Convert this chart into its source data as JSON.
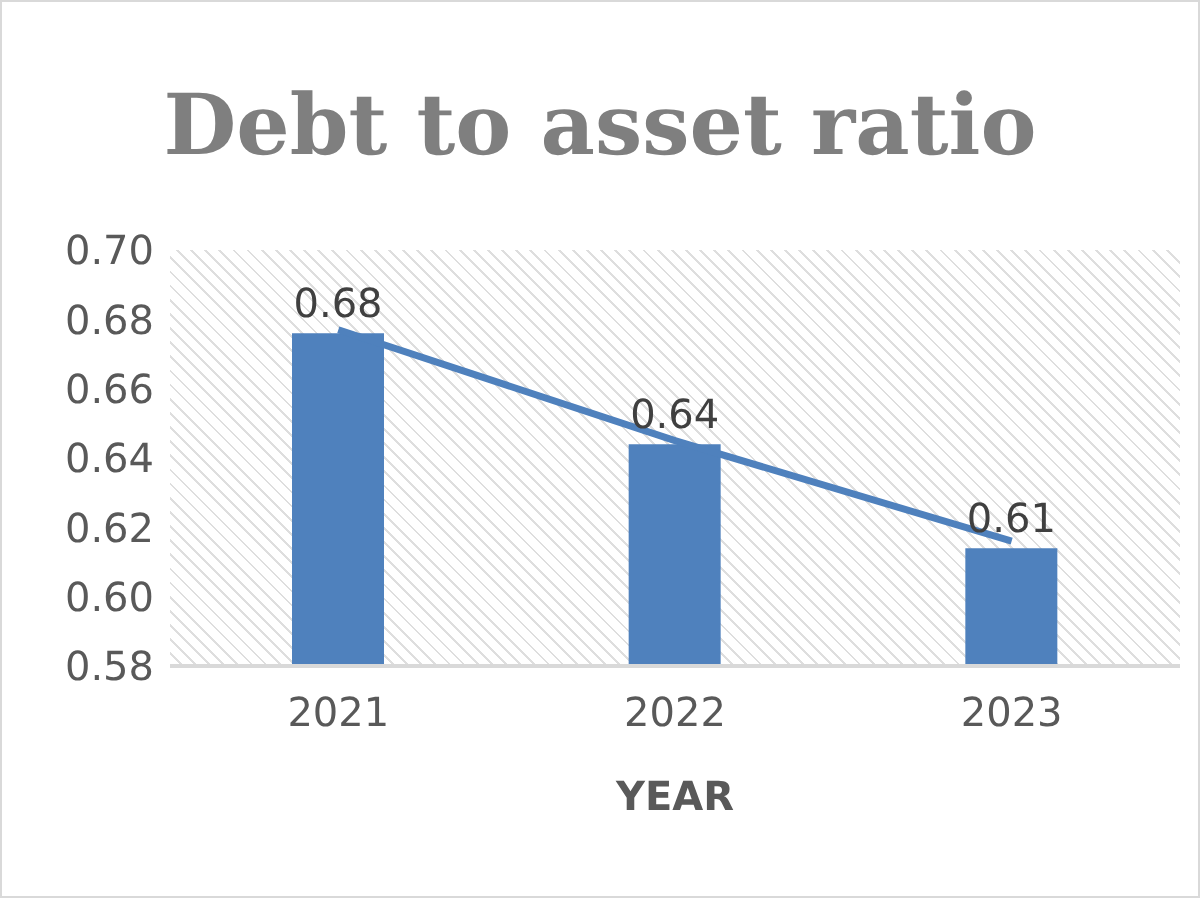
{
  "chart_data": {
    "type": "bar",
    "title": "Debt to asset ratio",
    "xlabel": "YEAR",
    "categories": [
      "2021",
      "2022",
      "2023"
    ],
    "series": [
      {
        "color": "#4f81bd",
        "values": [
          0.676,
          0.644,
          0.614
        ],
        "value_labels": [
          "0.68",
          "0.64",
          "0.61"
        ]
      },
      {
        "type": "line",
        "color": "#4f81bd",
        "values": [
          0.677,
          0.645,
          0.616
        ]
      }
    ],
    "ylim": [
      0.58,
      0.7
    ],
    "yticks": [
      0.58,
      {
        "value": 0.6,
        "label": "0.60"
      },
      0.62,
      0.64,
      0.66,
      0.68,
      {
        "value": 0.7,
        "label": "0.70"
      }
    ],
    "grid": false,
    "legend": false,
    "marker": "none",
    "line_style": "solid"
  }
}
